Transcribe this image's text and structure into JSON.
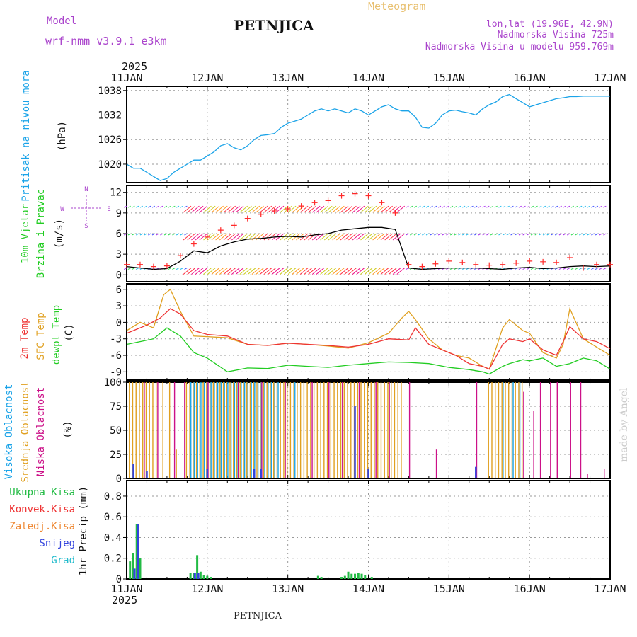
{
  "header": {
    "model_label": "Model",
    "model_value": "wrf-nmm_v3.9.1  e3km",
    "title": "PETNJICA",
    "meteogram": "Meteogram",
    "lonlat": "lon,lat (19.96E, 42.9N)",
    "elevation": "Nadmorska Visina 725m",
    "model_elevation": "Nadmorska Visina u modelu 959.769m",
    "footer_title": "PETNJICA",
    "credit": "made by Angel"
  },
  "colors": {
    "pressure": "#1aa3e8",
    "wind_speed": "#000000",
    "wind_gust": "#ff2a2a",
    "temp_2m": "#ee3333",
    "temp_sfc": "#e0a020",
    "dewpoint": "#22cc22",
    "cloud_high": "#1aa3e8",
    "cloud_mid": "#e0a020",
    "cloud_low": "#cc1188",
    "precip_total": "#22bb44",
    "precip_snow": "#3344dd",
    "precip_conv": "#ee3333",
    "header_purple": "#aa44cc",
    "header_gold": "#e8c070",
    "grid": "#999999"
  },
  "chart_data": [
    {
      "type": "line",
      "panel": "pressure",
      "ylabel_name": "Pritisak na nivou mora",
      "ylabel_unit": "(hPa)",
      "x_labels": [
        "11JAN",
        "12JAN",
        "13JAN",
        "14JAN",
        "15JAN",
        "16JAN",
        "17JAN"
      ],
      "x_year": "2025",
      "x_range_hours": [
        0,
        144
      ],
      "yticks": [
        1020,
        1026,
        1032,
        1038
      ],
      "ylim": [
        1015.5,
        1039
      ],
      "series": [
        {
          "name": "MSLP",
          "x": [
            0,
            2,
            4,
            6,
            8,
            10,
            12,
            14,
            16,
            18,
            20,
            22,
            24,
            26,
            28,
            30,
            32,
            34,
            36,
            38,
            40,
            42,
            44,
            46,
            48,
            50,
            52,
            54,
            56,
            58,
            60,
            62,
            64,
            66,
            68,
            70,
            72,
            74,
            76,
            78,
            80,
            82,
            84,
            86,
            88,
            90,
            92,
            94,
            96,
            98,
            100,
            102,
            104,
            106,
            108,
            110,
            112,
            114,
            116,
            118,
            120,
            122,
            124,
            126,
            128,
            130,
            132,
            134,
            136,
            138,
            140,
            142,
            144
          ],
          "values": [
            1020,
            1019,
            1019,
            1018,
            1017,
            1016,
            1016.5,
            1018,
            1019,
            1020,
            1021,
            1021,
            1022,
            1023,
            1024.5,
            1025,
            1024,
            1023.5,
            1024.5,
            1026,
            1027,
            1027.2,
            1027.5,
            1029,
            1030,
            1030.5,
            1031,
            1032,
            1033,
            1033.5,
            1033,
            1033.5,
            1033,
            1032.5,
            1033.5,
            1033,
            1032,
            1033,
            1034,
            1034.5,
            1033.5,
            1033,
            1033,
            1031.5,
            1029,
            1028.8,
            1030,
            1032,
            1033,
            1033.2,
            1032.8,
            1032.5,
            1032,
            1033.5,
            1034.5,
            1035.2,
            1036.5,
            1037,
            1036,
            1035,
            1034,
            1034.5,
            1035,
            1035.5,
            1036,
            1036.2,
            1036.5,
            1036.5,
            1036.6,
            1036.6,
            1036.6,
            1036.6,
            1036.6
          ]
        }
      ]
    },
    {
      "type": "line",
      "panel": "wind",
      "ylabel_name": [
        "10m Vjetar",
        "Brzina i Pravac"
      ],
      "ylabel_unit": "(m/s)",
      "compass": {
        "n": "N",
        "s": "S",
        "w": "W",
        "e": "E"
      },
      "yticks": [
        0,
        3,
        6,
        9,
        12
      ],
      "ylim": [
        -1,
        13
      ],
      "series": [
        {
          "name": "wind speed",
          "x": [
            0,
            4,
            8,
            12,
            16,
            20,
            24,
            28,
            32,
            36,
            40,
            44,
            48,
            52,
            56,
            60,
            64,
            68,
            72,
            76,
            80,
            84,
            88,
            92,
            96,
            100,
            104,
            108,
            112,
            116,
            120,
            124,
            128,
            132,
            136,
            140,
            144
          ],
          "values": [
            1.2,
            1,
            0.8,
            0.9,
            2,
            3.5,
            3.2,
            4.2,
            4.8,
            5.2,
            5.3,
            5.5,
            5.6,
            5.5,
            5.8,
            6,
            6.5,
            6.7,
            6.9,
            6.9,
            6.6,
            1,
            0.8,
            0.9,
            1,
            1,
            1,
            0.9,
            0.8,
            1,
            1.1,
            0.9,
            1,
            1.2,
            1.3,
            1.2,
            1.3
          ]
        },
        {
          "name": "wind gust",
          "x": [
            0,
            4,
            8,
            12,
            16,
            20,
            24,
            28,
            32,
            36,
            40,
            44,
            48,
            52,
            56,
            60,
            64,
            68,
            72,
            76,
            80,
            84,
            88,
            92,
            96,
            100,
            104,
            108,
            112,
            116,
            120,
            124,
            128,
            132,
            136,
            140,
            144
          ],
          "values": [
            1.5,
            1.5,
            1.2,
            1.3,
            2.8,
            4.5,
            5.5,
            6.5,
            7.2,
            8.2,
            8.8,
            9.3,
            9.6,
            10,
            10.5,
            10.8,
            11.5,
            11.8,
            11.5,
            10.5,
            9,
            1.5,
            1.2,
            1.6,
            2,
            1.8,
            1.5,
            1.4,
            1.5,
            1.7,
            2,
            1.9,
            1.8,
            2.5,
            1,
            1.5,
            1.5
          ]
        }
      ]
    },
    {
      "type": "line",
      "panel": "temperature",
      "ylabel_name": [
        "2m Temp",
        "SFC Temp",
        "dewpt Temp"
      ],
      "ylabel_unit": "(C)",
      "yticks": [
        -9,
        -6,
        -3,
        0,
        3,
        6
      ],
      "ylim": [
        -10.5,
        7
      ],
      "series": [
        {
          "name": "2m Temp",
          "x": [
            0,
            6,
            10,
            13,
            16,
            20,
            24,
            30,
            36,
            42,
            48,
            54,
            60,
            66,
            72,
            78,
            84,
            86,
            90,
            94,
            98,
            102,
            106,
            108,
            112,
            114,
            118,
            120,
            124,
            128,
            130,
            132,
            136,
            140,
            144
          ],
          "values": [
            -2,
            -0.5,
            0.8,
            2.5,
            1.5,
            -1.5,
            -2.2,
            -2.5,
            -4,
            -4.2,
            -3.8,
            -4,
            -4.2,
            -4.5,
            -4,
            -3,
            -3.2,
            -1,
            -4,
            -5,
            -6,
            -7.5,
            -8,
            -8.5,
            -4,
            -3,
            -3.5,
            -3,
            -5,
            -6,
            -3.5,
            -0.8,
            -3,
            -3.5,
            -4.8
          ]
        },
        {
          "name": "SFC Temp",
          "x": [
            0,
            4,
            8,
            11,
            13,
            16,
            20,
            24,
            30,
            36,
            42,
            48,
            54,
            60,
            66,
            72,
            78,
            82,
            84,
            86,
            90,
            94,
            98,
            102,
            106,
            108,
            112,
            114,
            118,
            120,
            124,
            128,
            130,
            132,
            136,
            140,
            144
          ],
          "values": [
            -1.5,
            0,
            -1,
            5,
            6,
            2,
            -2.5,
            -2.6,
            -2.8,
            -4,
            -4.2,
            -3.8,
            -4,
            -4.3,
            -4.7,
            -3.7,
            -2,
            0.8,
            2,
            0.5,
            -3,
            -5,
            -6,
            -6.5,
            -8,
            -8.5,
            -1,
            0.5,
            -1.5,
            -2,
            -5.5,
            -6.5,
            -4,
            2.5,
            -3,
            -4.5,
            -6
          ]
        },
        {
          "name": "Dewpoint",
          "x": [
            0,
            4,
            8,
            12,
            16,
            20,
            24,
            30,
            36,
            42,
            48,
            54,
            60,
            66,
            72,
            78,
            84,
            90,
            96,
            102,
            106,
            108,
            112,
            114,
            118,
            120,
            124,
            128,
            132,
            136,
            140,
            144
          ],
          "values": [
            -4,
            -3.5,
            -3,
            -1,
            -2.5,
            -5.5,
            -6.5,
            -9,
            -8.3,
            -8.4,
            -7.8,
            -8,
            -8.2,
            -7.8,
            -7.5,
            -7.2,
            -7.3,
            -7.5,
            -8.2,
            -8.6,
            -9,
            -9.4,
            -8,
            -7.5,
            -6.8,
            -7,
            -6.5,
            -8,
            -7.5,
            -6.5,
            -7,
            -8.5
          ]
        }
      ]
    },
    {
      "type": "bar",
      "panel": "cloud",
      "ylabel_name": [
        "Visoka Oblacnost",
        "Srednja Oblacnost",
        "Niska Oblacnost"
      ],
      "ylabel_unit": "(%)",
      "yticks": [
        0,
        25,
        50,
        75,
        100
      ],
      "ylim": [
        0,
        100
      ],
      "series": [
        {
          "name": "Srednja",
          "x": [
            1,
            2,
            3,
            4,
            5,
            6,
            7,
            8,
            9,
            11,
            13,
            15,
            18,
            19,
            20,
            21,
            22,
            23,
            24,
            25,
            26,
            27,
            28,
            29,
            30,
            31,
            32,
            33,
            34,
            35,
            36,
            37,
            38,
            39,
            40,
            41,
            42,
            43,
            44,
            45,
            46,
            47,
            48,
            49,
            50,
            51,
            52,
            53,
            54,
            55,
            56,
            57,
            58,
            59,
            60,
            61,
            62,
            63,
            64,
            65,
            66,
            67,
            68,
            69,
            70,
            71,
            72,
            73,
            74,
            75,
            76,
            77,
            78,
            79,
            80,
            81,
            82,
            108,
            109,
            110,
            111,
            112,
            113,
            114,
            115,
            116,
            117,
            118
          ],
          "values": [
            100,
            100,
            100,
            100,
            100,
            100,
            100,
            100,
            100,
            100,
            100,
            30,
            100,
            100,
            100,
            100,
            100,
            100,
            100,
            100,
            100,
            100,
            100,
            100,
            100,
            100,
            100,
            100,
            100,
            100,
            100,
            100,
            100,
            100,
            100,
            100,
            100,
            100,
            100,
            100,
            100,
            100,
            100,
            100,
            100,
            100,
            100,
            100,
            100,
            100,
            100,
            100,
            100,
            100,
            100,
            100,
            100,
            100,
            100,
            100,
            100,
            100,
            100,
            100,
            100,
            100,
            100,
            100,
            100,
            100,
            100,
            100,
            100,
            100,
            100,
            100,
            100,
            100,
            100,
            100,
            100,
            100,
            100,
            100,
            100,
            100,
            100,
            100
          ]
        },
        {
          "name": "Visoka",
          "x": [
            19,
            20,
            21,
            22,
            23,
            24,
            25,
            26,
            27,
            28,
            29,
            30,
            31,
            32,
            33,
            34,
            35,
            36,
            37,
            38,
            39,
            40,
            41,
            42,
            43,
            44,
            45,
            50,
            112,
            115,
            117
          ],
          "values": [
            100,
            100,
            100,
            100,
            100,
            100,
            100,
            100,
            100,
            100,
            100,
            100,
            100,
            100,
            100,
            100,
            100,
            100,
            100,
            100,
            100,
            100,
            100,
            100,
            100,
            100,
            100,
            100,
            100,
            100,
            100
          ]
        },
        {
          "name": "Niska",
          "x": [
            5,
            9,
            14,
            17,
            24,
            33,
            40,
            47,
            55,
            60,
            64,
            69,
            74,
            78,
            84,
            92,
            104,
            118,
            121,
            123,
            126,
            128,
            132,
            135,
            137,
            142
          ],
          "values": [
            100,
            100,
            100,
            100,
            100,
            100,
            100,
            100,
            100,
            100,
            100,
            100,
            100,
            100,
            100,
            30,
            100,
            90,
            70,
            100,
            100,
            100,
            100,
            100,
            5,
            10
          ]
        },
        {
          "name": "Snow (blue)",
          "x": [
            2,
            6,
            24,
            38,
            40,
            68,
            72,
            104
          ],
          "values": [
            15,
            8,
            10,
            10,
            10,
            75,
            10,
            12
          ]
        }
      ]
    },
    {
      "type": "bar",
      "panel": "precipitation",
      "ylabel_name": "1hr Precip",
      "ylabel_unit": "(mm)",
      "legend": [
        "Ukupna Kisa",
        "Konvek.Kisa",
        "Zaledj.Kisa",
        "Snijeg",
        "Grad"
      ],
      "yticks": [
        0,
        0.2,
        0.4,
        0.6,
        0.8
      ],
      "ylim": [
        0,
        0.95
      ],
      "series": [
        {
          "name": "Ukupna Kisa",
          "x": [
            1,
            2,
            3,
            4,
            19,
            20,
            21,
            22,
            23,
            24,
            25,
            57,
            58,
            64,
            65,
            66,
            67,
            68,
            69,
            70,
            71,
            73
          ],
          "values": [
            0.17,
            0.25,
            0.53,
            0.2,
            0.06,
            0.06,
            0.23,
            0.07,
            0.04,
            0.03,
            0.02,
            0.03,
            0.02,
            0.02,
            0.03,
            0.07,
            0.05,
            0.05,
            0.06,
            0.05,
            0.04,
            0.02
          ]
        },
        {
          "name": "Snijeg",
          "x": [
            2,
            3,
            20,
            21
          ],
          "values": [
            0.1,
            0.53,
            0.06,
            0.06
          ]
        }
      ]
    }
  ]
}
